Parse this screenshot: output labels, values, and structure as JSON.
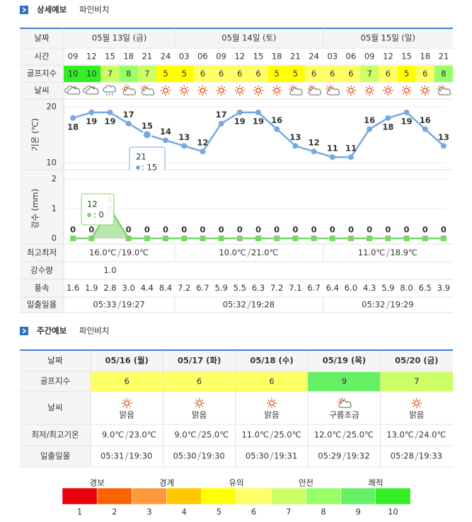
{
  "detail": {
    "title": "상세예보",
    "location": "파인비치",
    "row_labels": {
      "date": "날짜",
      "time": "시간",
      "golf": "골프지수",
      "weather": "날씨",
      "temp_range": "최고최저",
      "rain": "강수량",
      "wind": "풍속",
      "sun": "일출일몰"
    },
    "days": [
      {
        "date": "05월 13일 (금)",
        "min": "16.0℃",
        "max": "19.0℃",
        "sunrise": "05:33",
        "sunset": "19:27"
      },
      {
        "date": "05월 14일 (토)",
        "min": "10.0℃",
        "max": "21.0℃",
        "sunrise": "05:32",
        "sunset": "19:28"
      },
      {
        "date": "05월 15일 (일)",
        "min": "11.0℃",
        "max": "18.9℃",
        "sunrise": "05:32",
        "sunset": "19:29"
      }
    ],
    "times": [
      "09",
      "12",
      "15",
      "18",
      "21",
      "24",
      "03",
      "06",
      "09",
      "12",
      "15",
      "18",
      "21",
      "24",
      "03",
      "06",
      "09",
      "12",
      "15",
      "18",
      "21"
    ],
    "golf_index": [
      10,
      10,
      7,
      8,
      7,
      5,
      5,
      6,
      6,
      6,
      6,
      5,
      5,
      6,
      6,
      6,
      7,
      6,
      5,
      6,
      8
    ],
    "temperature": {
      "axis_label": "기온 (℃)",
      "values": [
        18,
        19,
        19,
        17,
        15,
        14,
        13,
        12,
        17,
        19,
        19,
        16,
        13,
        12,
        11,
        11,
        16,
        18,
        19,
        16,
        13
      ],
      "color": "#76a9e3",
      "ylim": [
        10,
        20
      ],
      "yticks": [
        10,
        20
      ],
      "tooltip": {
        "title": "21",
        "text": ": 15"
      }
    },
    "precipitation": {
      "axis_label": "강수 (mm)",
      "values": [
        0,
        0,
        1,
        0,
        0,
        0,
        0,
        0,
        0,
        0,
        0,
        0,
        0,
        0,
        0,
        0,
        0,
        0,
        0,
        0,
        0
      ],
      "color": "#7fd36b",
      "ylim": [
        0,
        2
      ],
      "yticks": [
        0,
        1,
        2
      ],
      "tooltip": {
        "title": "12",
        "text": ": 0"
      }
    },
    "rain": [
      null,
      null,
      "1.0",
      null,
      null,
      null,
      null,
      null,
      null,
      null,
      null,
      null,
      null,
      null,
      null,
      null,
      null,
      null,
      null,
      null,
      null
    ],
    "wind": [
      "1.6",
      "1.9",
      "2.8",
      "3.0",
      "4.4",
      "8.4",
      "7.2",
      "6.7",
      "5.9",
      "5.5",
      "6.3",
      "7.2",
      "7.1",
      "6.7",
      "6.4",
      "6.0",
      "4.3",
      "5.9",
      "8.0",
      "6.5",
      "3.9"
    ]
  },
  "weekly": {
    "title": "주간예보",
    "location": "파인비치",
    "row_labels": {
      "date": "날짜",
      "golf": "골프지수",
      "weather": "날씨",
      "temp": "최저/최고기온",
      "sun": "일출일몰"
    },
    "days": [
      {
        "date": "05/16 (월)",
        "golf": 6,
        "weather": "맑음",
        "min": "9.0℃",
        "max": "23.0℃",
        "sunrise": "05:31",
        "sunset": "19:30"
      },
      {
        "date": "05/17 (화)",
        "golf": 6,
        "weather": "맑음",
        "min": "9.0℃",
        "max": "25.0℃",
        "sunrise": "05:30",
        "sunset": "19:30"
      },
      {
        "date": "05/18 (수)",
        "golf": 6,
        "weather": "맑음",
        "min": "11.0℃",
        "max": "25.0℃",
        "sunrise": "05:30",
        "sunset": "19:31"
      },
      {
        "date": "05/19 (목)",
        "golf": 9,
        "weather": "구름조금",
        "min": "12.0℃",
        "max": "25.0℃",
        "sunrise": "05:29",
        "sunset": "19:32"
      },
      {
        "date": "05/20 (금)",
        "golf": 7,
        "weather": "맑음",
        "min": "13.0℃",
        "max": "24.0℃",
        "sunrise": "05:28",
        "sunset": "19:33"
      }
    ]
  },
  "legend": {
    "grades": [
      "경보",
      "경계",
      "유의",
      "안전",
      "쾌적"
    ],
    "levels": [
      {
        "value": 1,
        "color": "#e8000b"
      },
      {
        "value": 2,
        "color": "#fa6400"
      },
      {
        "value": 3,
        "color": "#ff9a3c"
      },
      {
        "value": 4,
        "color": "#ffc800"
      },
      {
        "value": 5,
        "color": "#ffff00"
      },
      {
        "value": 6,
        "color": "#ffff66"
      },
      {
        "value": 7,
        "color": "#ccff66"
      },
      {
        "value": 8,
        "color": "#99ff66"
      },
      {
        "value": 9,
        "color": "#66f066"
      },
      {
        "value": 10,
        "color": "#33ee22"
      }
    ]
  }
}
